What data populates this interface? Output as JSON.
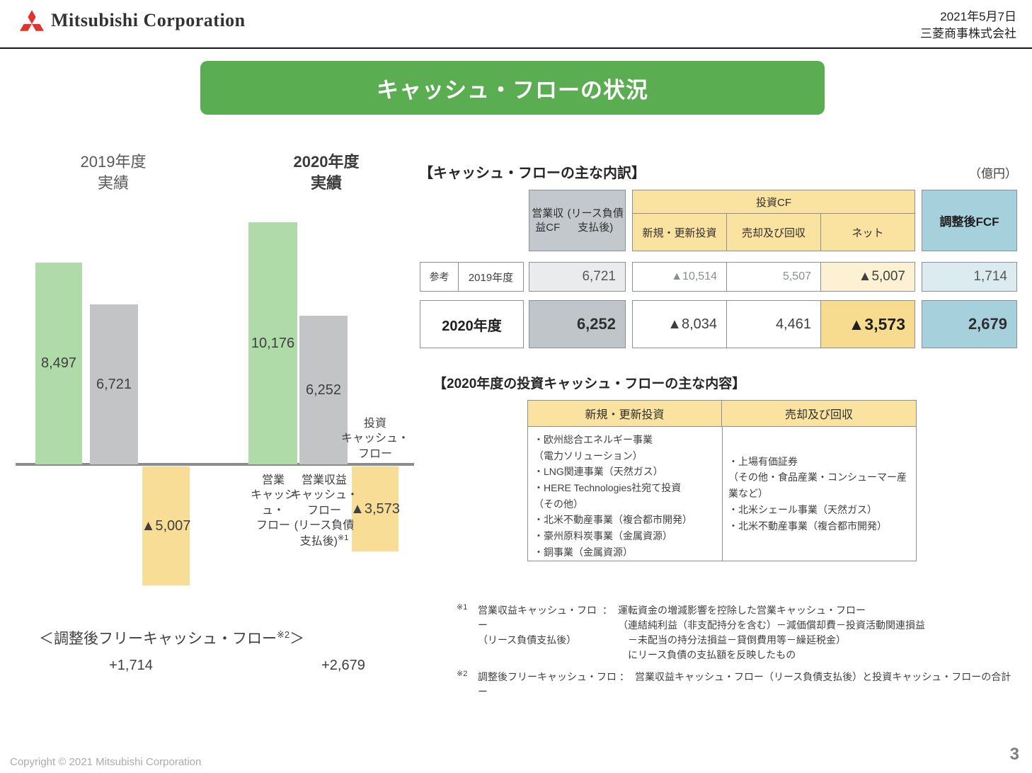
{
  "header": {
    "logo_text": "Mitsubishi Corporation",
    "date": "2021年5月7日",
    "company": "三菱商事株式会社"
  },
  "title": "キャッシュ・フローの状況",
  "colors": {
    "brand_green": "#5BAD52",
    "logo_red": "#E0342F",
    "bar_green": "#AEDBA7",
    "bar_gray": "#C2C4C6",
    "bar_yellow": "#F8DD96",
    "table_header_gray": "#C2C8CC",
    "table_yellow": "#FAE2A1",
    "table_blue": "#A6D0DC"
  },
  "chart_data": {
    "type": "bar",
    "unit": "億円",
    "zero_line": true,
    "ylim": [
      -5500,
      11000
    ],
    "groups": [
      {
        "year": "2019年度",
        "caption": "実績",
        "bars": [
          {
            "series": "営業キャッシュ・フロー",
            "value": 8497,
            "display": "8,497",
            "color": "green"
          },
          {
            "series": "営業収益キャッシュ・フロー（リース負債支払後）",
            "value": 6721,
            "display": "6,721",
            "color": "gray"
          },
          {
            "series": "投資キャッシュ・フロー",
            "value": -5007,
            "display": "▲5,007",
            "color": "yellow"
          }
        ]
      },
      {
        "year": "2020年度",
        "caption": "実績",
        "bars": [
          {
            "series": "営業キャッシュ・フロー",
            "value": 10176,
            "display": "10,176",
            "color": "green"
          },
          {
            "series": "営業収益キャッシュ・フロー（リース負債支払後）",
            "value": 6252,
            "display": "6,252",
            "color": "gray"
          },
          {
            "series": "投資キャッシュ・フロー",
            "value": -3573,
            "display": "▲3,573",
            "color": "yellow"
          }
        ]
      }
    ],
    "xaxis_labels": [
      {
        "lines": [
          "営業",
          "キャッシュ・",
          "フロー"
        ],
        "sup": ""
      },
      {
        "lines": [
          "営業収益",
          "キャッシュ・",
          "フロー",
          "(リース負債",
          "支払後)"
        ],
        "sup": "※1"
      },
      {
        "lines": [
          "投資",
          "キャッシュ・",
          "フロー"
        ],
        "sup": ""
      }
    ],
    "adjusted_fcf": {
      "heading_prefix": "＜調整後フリーキャッシュ・フロー",
      "heading_sup": "※2",
      "heading_suffix": "＞",
      "values": [
        "+1,714",
        "+2,679"
      ]
    }
  },
  "breakdown_table": {
    "section_title": "【キャッシュ・フローの主な内訳】",
    "unit_label": "（億円）",
    "headers": {
      "operating_lines": [
        "営業収益CF",
        "(リース負債支払後)"
      ],
      "investing_group": "投資CF",
      "sub_new": "新規・更新投資",
      "sub_sell": "売却及び回収",
      "sub_net": "ネット",
      "fcf": "調整後FCF"
    },
    "rows": [
      {
        "ref": "参考",
        "year": "2019年度",
        "operating": "6,721",
        "new_invest": "▲10,514",
        "sell": "5,507",
        "net": "▲5,007",
        "fcf": "1,714"
      },
      {
        "ref": "",
        "year": "2020年度",
        "operating": "6,252",
        "new_invest": "▲8,034",
        "sell": "4,461",
        "net": "▲3,573",
        "fcf": "2,679"
      }
    ]
  },
  "investment_detail": {
    "section_title": "【2020年度の投資キャッシュ・フローの主な内容】",
    "columns": [
      {
        "header": "新規・更新投資",
        "items": [
          "・欧州総合エネルギー事業",
          "（電力ソリューション）",
          "・LNG関連事業（天然ガス）",
          "・HERE Technologies社宛て投資",
          "（その他）",
          "・北米不動産事業（複合都市開発）",
          "・豪州原料炭事業（金属資源）",
          "・銅事業（金属資源）"
        ]
      },
      {
        "header": "売却及び回収",
        "items": [
          "・上場有価証券",
          "（その他・食品産業・コンシューマー産業など）",
          "・北米シェール事業（天然ガス）",
          "・北米不動産事業（複合都市開発）"
        ]
      }
    ]
  },
  "footnotes": [
    {
      "mark": "※1",
      "term_lines": [
        "営業収益キャッシュ・フロー",
        "（リース負債支払後）"
      ],
      "colon": "：",
      "desc_lines": [
        "運転資金の増減影響を控除した営業キャッシュ・フロー",
        "（連結純利益（非支配持分を含む）－減価償却費－投資活動関連損益",
        "　－未配当の持分法損益－貸倒費用等－繰延税金）",
        "　にリース負債の支払額を反映したもの"
      ]
    },
    {
      "mark": "※2",
      "term_lines": [
        "調整後フリーキャッシュ・フロー"
      ],
      "colon": "：",
      "desc_lines": [
        "営業収益キャッシュ・フロー（リース負債支払後）と投資キャッシュ・フローの合計"
      ]
    }
  ],
  "footer": {
    "copyright": "Copyright © 2021 Mitsubishi Corporation",
    "page": "3"
  }
}
